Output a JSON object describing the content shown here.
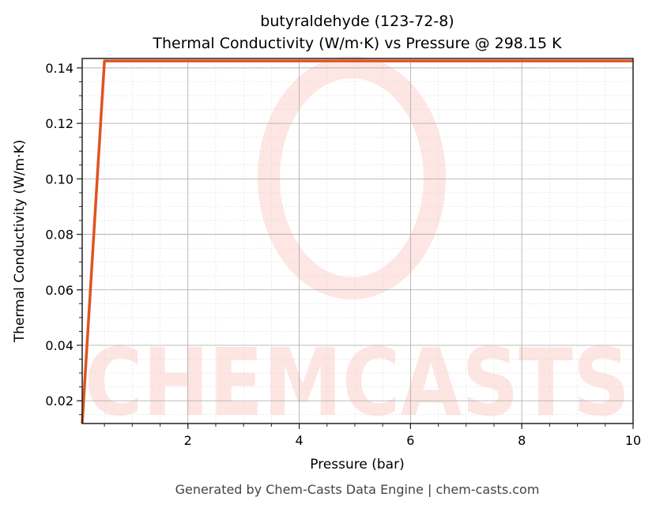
{
  "chart_data": {
    "type": "line",
    "title": "butyraldehyde (123-72-8)",
    "subtitle": "Thermal Conductivity (W/m·K) vs Pressure @ 298.15 K",
    "xlabel": "Pressure (bar)",
    "ylabel": "Thermal Conductivity (W/m·K)",
    "xlim": [
      0.1,
      10
    ],
    "ylim": [
      0.0118,
      0.1434
    ],
    "xticks": [
      2,
      4,
      6,
      8,
      10
    ],
    "xtick_labels": [
      "2",
      "4",
      "6",
      "8",
      "10"
    ],
    "yticks": [
      0.02,
      0.04,
      0.06,
      0.08,
      0.1,
      0.12,
      0.14
    ],
    "ytick_labels": [
      "0.02",
      "0.04",
      "0.06",
      "0.08",
      "0.10",
      "0.12",
      "0.14"
    ],
    "grid": true,
    "series": [
      {
        "x": [
          0.1,
          0.5,
          10
        ],
        "y": [
          0.0118,
          0.1425,
          0.1425
        ],
        "color": "#e0531f"
      }
    ],
    "watermark": "CHEMCASTS"
  },
  "footer": "Generated by Chem-Casts Data Engine | chem-casts.com"
}
